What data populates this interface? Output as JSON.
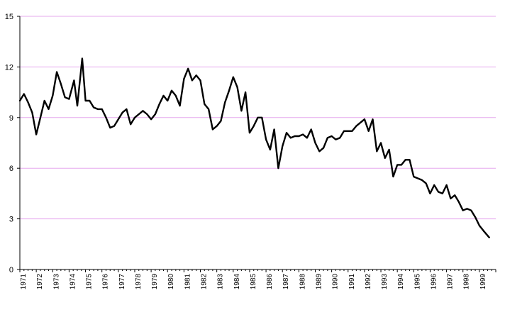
{
  "chart_data": {
    "type": "line",
    "title": "",
    "xlabel": "",
    "ylabel": "",
    "ylim": [
      0,
      15
    ],
    "yticks": [
      0,
      3,
      6,
      9,
      12,
      15
    ],
    "xlim": [
      1971,
      2000
    ],
    "xtick_labels": [
      "1971",
      "1972",
      "1973",
      "1974",
      "1975",
      "1976",
      "1977",
      "1978",
      "1979",
      "1980",
      "1981",
      "1982",
      "1983",
      "1984",
      "1985",
      "1986",
      "1987",
      "1988",
      "1989",
      "1990",
      "1991",
      "1992",
      "1993",
      "1994",
      "1995",
      "1996",
      "1997",
      "1998",
      "1999"
    ],
    "grid": true,
    "legend": "none",
    "colors": {
      "grid": "#e6a8ee",
      "line": "#000000",
      "axis": "#000000"
    },
    "series": [
      {
        "x": [
          1971.0,
          1971.25,
          1971.5,
          1971.75,
          1972.0,
          1972.2,
          1972.5,
          1972.75,
          1973.0,
          1973.25,
          1973.5,
          1973.75,
          1974.0,
          1974.3,
          1974.5,
          1974.8,
          1975.0,
          1975.25,
          1975.5,
          1975.75,
          1976.0,
          1976.25,
          1976.5,
          1976.75,
          1977.0,
          1977.25,
          1977.5,
          1977.75,
          1978.0,
          1978.25,
          1978.5,
          1978.75,
          1979.0,
          1979.25,
          1979.5,
          1979.75,
          1980.0,
          1980.25,
          1980.5,
          1980.75,
          1981.0,
          1981.25,
          1981.5,
          1981.75,
          1982.0,
          1982.25,
          1982.5,
          1982.75,
          1983.0,
          1983.25,
          1983.5,
          1983.75,
          1984.0,
          1984.25,
          1984.5,
          1984.75,
          1985.0,
          1985.25,
          1985.5,
          1985.75,
          1986.0,
          1986.25,
          1986.5,
          1986.75,
          1987.0,
          1987.25,
          1987.5,
          1987.75,
          1988.0,
          1988.25,
          1988.5,
          1988.75,
          1989.0,
          1989.25,
          1989.5,
          1989.75,
          1990.0,
          1990.25,
          1990.5,
          1990.75,
          1991.0,
          1991.25,
          1991.5,
          1991.75,
          1992.0,
          1992.25,
          1992.5,
          1992.75,
          1993.0,
          1993.25,
          1993.5,
          1993.75,
          1994.0,
          1994.25,
          1994.5,
          1994.75,
          1995.0,
          1995.25,
          1995.5,
          1995.75,
          1996.0,
          1996.25,
          1996.5,
          1996.75,
          1997.0,
          1997.25,
          1997.5,
          1997.75,
          1998.0,
          1998.25,
          1998.5,
          1998.75,
          1999.0,
          1999.25,
          1999.6
        ],
        "values": [
          10.0,
          10.4,
          9.9,
          9.3,
          8.0,
          8.8,
          10.0,
          9.5,
          10.3,
          11.7,
          11.0,
          10.2,
          10.1,
          11.2,
          9.7,
          12.5,
          10.0,
          10.0,
          9.6,
          9.5,
          9.5,
          9.0,
          8.4,
          8.5,
          8.9,
          9.3,
          9.5,
          8.6,
          9.0,
          9.2,
          9.4,
          9.2,
          8.9,
          9.2,
          9.8,
          10.3,
          10.0,
          10.6,
          10.3,
          9.7,
          11.3,
          11.9,
          11.2,
          11.5,
          11.2,
          9.8,
          9.5,
          8.3,
          8.5,
          8.8,
          9.9,
          10.6,
          11.4,
          10.8,
          9.4,
          10.5,
          8.1,
          8.5,
          9.0,
          9.0,
          7.7,
          7.1,
          8.3,
          6.0,
          7.3,
          8.1,
          7.8,
          7.9,
          7.9,
          8.0,
          7.8,
          8.3,
          7.5,
          7.0,
          7.2,
          7.8,
          7.9,
          7.7,
          7.8,
          8.2,
          8.2,
          8.2,
          8.5,
          8.7,
          8.9,
          8.2,
          8.9,
          7.0,
          7.5,
          6.6,
          7.1,
          5.5,
          6.2,
          6.2,
          6.5,
          6.5,
          5.5,
          5.4,
          5.3,
          5.1,
          4.5,
          5.0,
          4.6,
          4.5,
          5.0,
          4.2,
          4.4,
          4.0,
          3.5,
          3.6,
          3.5,
          3.1,
          2.6,
          2.3,
          1.9
        ]
      }
    ]
  }
}
